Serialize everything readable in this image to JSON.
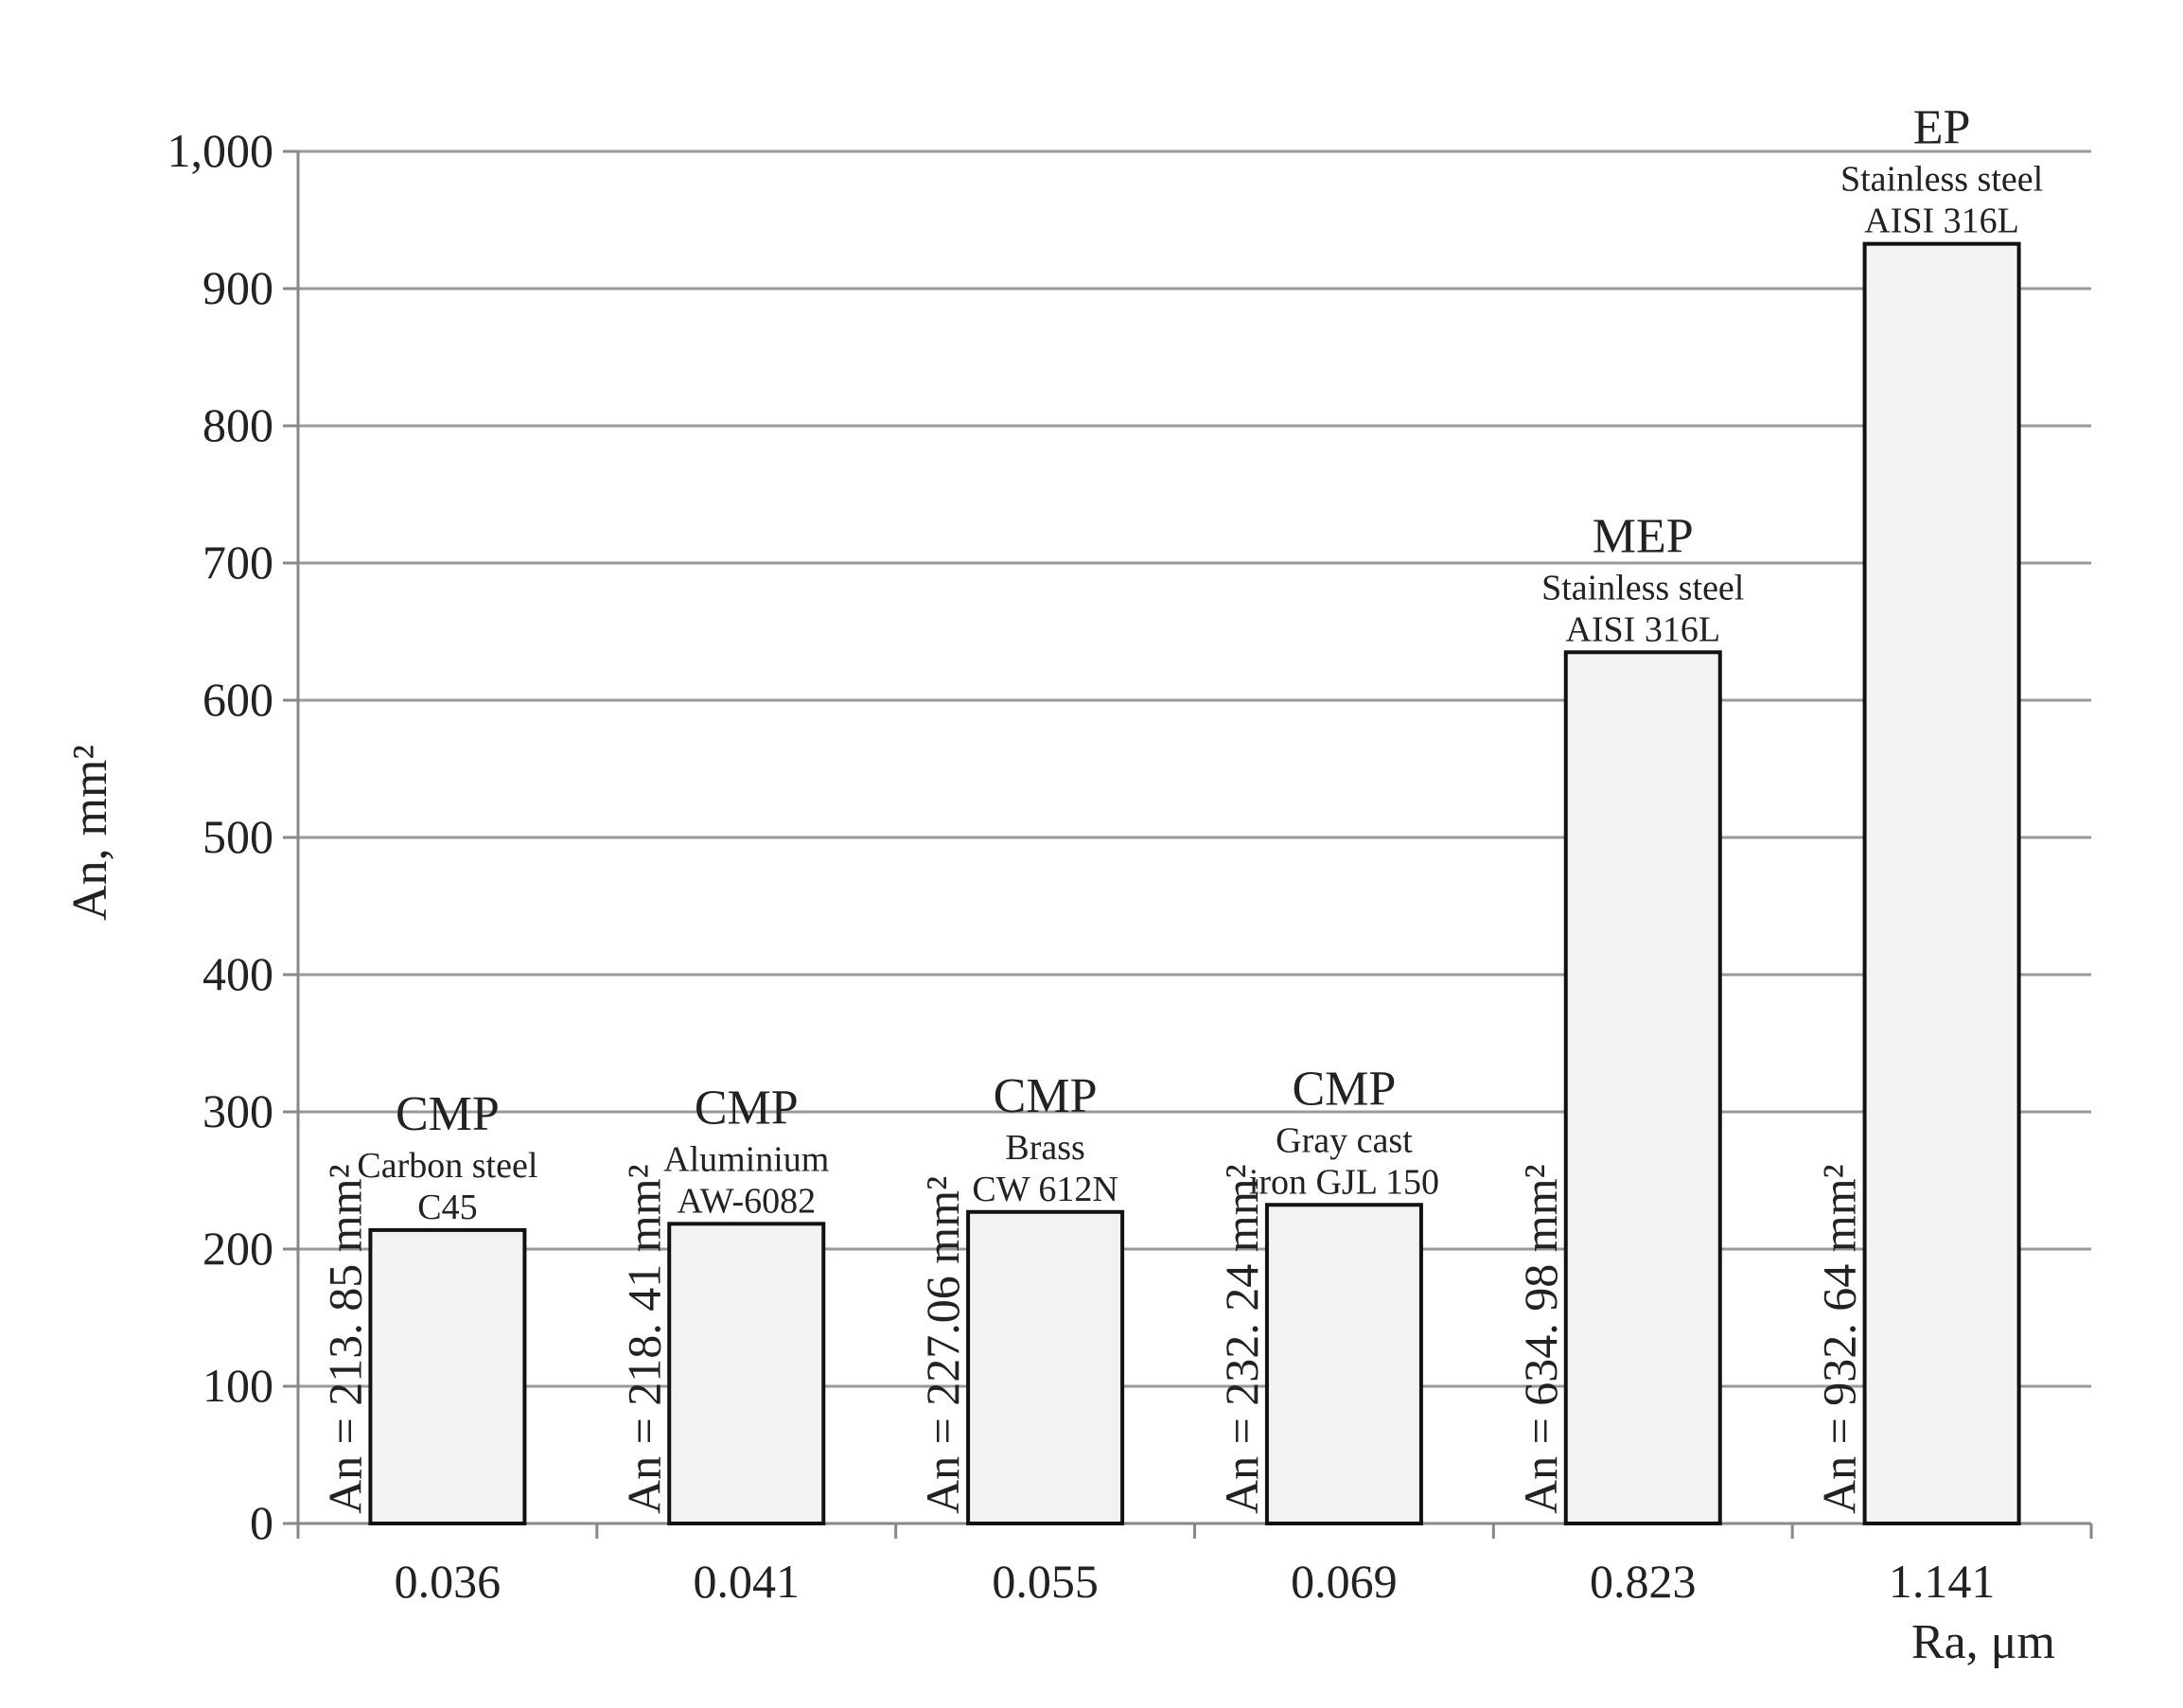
{
  "chart_data": {
    "type": "bar",
    "xlabel": "Ra, μm",
    "ylabel": "An, mm²",
    "ylim": [
      0,
      1000
    ],
    "yticks": [
      "0",
      "100",
      "200",
      "300",
      "400",
      "500",
      "600",
      "700",
      "800",
      "900",
      "1,000"
    ],
    "grid": true,
    "categories": [
      "0.036",
      "0.041",
      "0.055",
      "0.069",
      "0.823",
      "1.141"
    ],
    "values": [
      213.85,
      218.41,
      227.06,
      232.24,
      634.98,
      932.64
    ],
    "annotations": [
      {
        "process": "CMP",
        "material": [
          "Carbon steel",
          "C45"
        ],
        "label": "An = 213. 85 mm²"
      },
      {
        "process": "CMP",
        "material": [
          "Aluminium",
          "AW-6082"
        ],
        "label": "An = 218. 41 mm²"
      },
      {
        "process": "CMP",
        "material": [
          "Brass",
          "CW 612N"
        ],
        "label": "An = 227.06 mm²"
      },
      {
        "process": "CMP",
        "material": [
          "Gray cast",
          "iron GJL 150"
        ],
        "label": "An = 232. 24 mm²"
      },
      {
        "process": "MEP",
        "material": [
          "Stainless steel",
          "AISI 316L"
        ],
        "label": "An = 634. 98 mm²"
      },
      {
        "process": "EP",
        "material": [
          "Stainless steel",
          "AISI 316L"
        ],
        "label": "An = 932. 64 mm²"
      }
    ],
    "colors": {
      "bar_fill": "#f2f2f2",
      "bar_stroke": "#111111",
      "grid": "#999999",
      "axis": "#888888"
    }
  }
}
